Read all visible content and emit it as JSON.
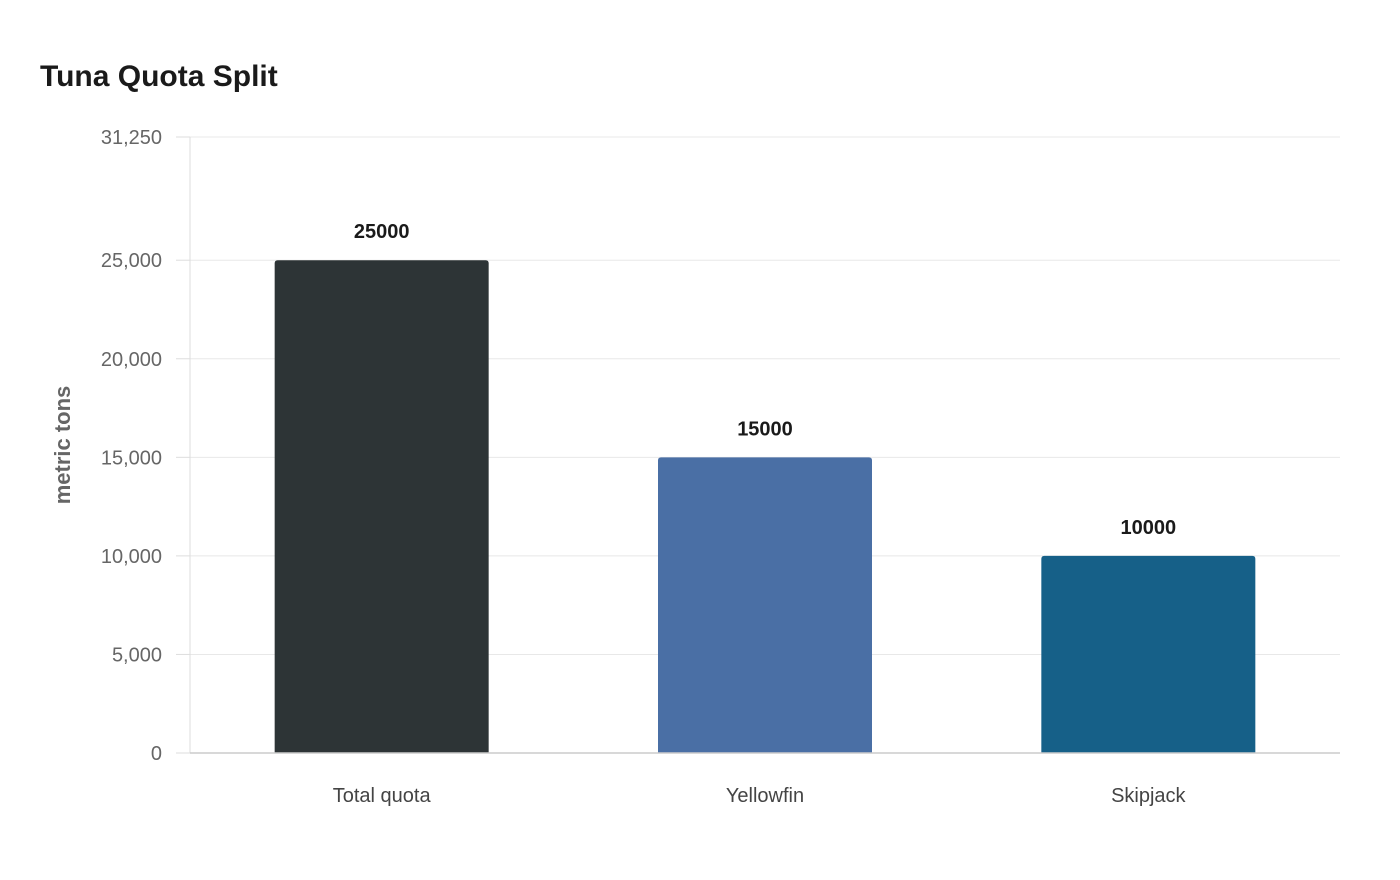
{
  "chart_data": {
    "type": "bar",
    "title": "Tuna Quota Split",
    "xlabel": "",
    "ylabel": "metric tons",
    "categories": [
      "Total quota",
      "Yellowfin",
      "Skipjack"
    ],
    "values": [
      25000,
      15000,
      10000
    ],
    "data_labels": [
      "25000",
      "15000",
      "10000"
    ],
    "ylim": [
      0,
      31250
    ],
    "yticks": [
      0,
      5000,
      10000,
      15000,
      20000,
      25000,
      31250
    ],
    "ytick_labels": [
      "0",
      "5,000",
      "10,000",
      "15,000",
      "20,000",
      "25,000",
      "31,250"
    ],
    "colors": [
      "#2d3436",
      "#4a6fa5",
      "#166088"
    ],
    "grid": true,
    "legend": "none"
  }
}
